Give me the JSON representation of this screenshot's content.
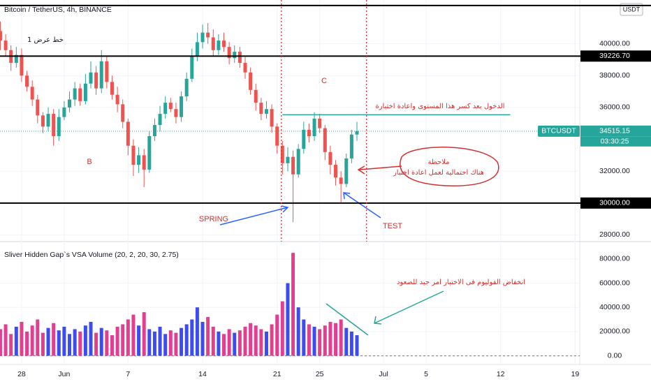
{
  "header": {
    "title": "Bitcoin / TetherUS, 4h, BINANCE",
    "currency": "USDT"
  },
  "chart_data": [
    {
      "type": "candlestick",
      "x": [
        26,
        26.5,
        27,
        27.5,
        28,
        28.5,
        29,
        29.5,
        30,
        30.5,
        31,
        31.5,
        32,
        32.5,
        33,
        33.5,
        34,
        34.5,
        35,
        35.5,
        36,
        36.5,
        37,
        37.5,
        38,
        38.5,
        39,
        39.5,
        40,
        40.5,
        41,
        41.5,
        42,
        42.5,
        43,
        43.5,
        44,
        44.5,
        45,
        45.5,
        46,
        46.5,
        47,
        47.5,
        48,
        48.5,
        49,
        49.5,
        50,
        50.5,
        51,
        51.5,
        52,
        52.5,
        53,
        53.5,
        54,
        54.5,
        55,
        55.5,
        56,
        56.5,
        57,
        57.5,
        58,
        58.5,
        59,
        59.5
      ],
      "open": [
        40800,
        40200,
        39600,
        38800,
        39300,
        38000,
        37300,
        36500,
        35500,
        34800,
        35600,
        34200,
        35400,
        36000,
        36500,
        37200,
        36400,
        37500,
        38200,
        37200,
        38900,
        37600,
        36800,
        36200,
        35100,
        33600,
        32400,
        33000,
        32100,
        34200,
        34900,
        35600,
        36300,
        35900,
        35400,
        36700,
        37800,
        39200,
        40100,
        40700,
        40400,
        39600,
        40200,
        39800,
        39100,
        39500,
        38800,
        38200,
        37100,
        36300,
        35600,
        35900,
        34800,
        33600,
        32500,
        32900,
        31800,
        33400,
        34600,
        34200,
        35300,
        34700,
        33200,
        32400,
        31600,
        31200,
        32800,
        34300
      ],
      "high": [
        41400,
        40600,
        39900,
        39800,
        39700,
        38300,
        37700,
        36800,
        35700,
        36000,
        35900,
        35900,
        36400,
        37000,
        37600,
        37500,
        38100,
        38900,
        38600,
        39600,
        39200,
        38000,
        37300,
        36500,
        35300,
        34000,
        33500,
        33400,
        34500,
        35300,
        36100,
        36700,
        36600,
        36300,
        37000,
        38200,
        39700,
        40700,
        41200,
        41300,
        40900,
        40600,
        40700,
        40100,
        39900,
        39800,
        39200,
        38500,
        37500,
        36600,
        36400,
        36200,
        35000,
        33900,
        33500,
        33300,
        33700,
        35100,
        35000,
        35700,
        35600,
        34900,
        33600,
        32700,
        32000,
        33100,
        34600,
        35100
      ],
      "low": [
        39600,
        39200,
        38300,
        38500,
        37600,
        37000,
        36100,
        35000,
        34400,
        34500,
        33600,
        33900,
        35200,
        35700,
        36100,
        36100,
        36200,
        37200,
        36800,
        36900,
        37200,
        36500,
        35700,
        34700,
        33000,
        31700,
        31900,
        31000,
        31900,
        33900,
        34500,
        35300,
        35700,
        35000,
        35100,
        36400,
        37600,
        38900,
        39700,
        40000,
        39200,
        39300,
        39500,
        38700,
        38800,
        38500,
        37800,
        36800,
        35800,
        35200,
        35300,
        34400,
        33100,
        31800,
        32000,
        28800,
        31600,
        33100,
        33800,
        33900,
        34400,
        32700,
        31800,
        31100,
        30000,
        31000,
        32500,
        33900
      ],
      "close": [
        40200,
        39600,
        38800,
        39300,
        38000,
        37300,
        36500,
        35500,
        34800,
        35600,
        34200,
        35400,
        36000,
        36500,
        37200,
        36400,
        37500,
        38200,
        37200,
        38900,
        37600,
        36800,
        36200,
        35100,
        33600,
        32400,
        33000,
        32100,
        34200,
        34900,
        35600,
        36300,
        35900,
        35400,
        36700,
        37800,
        39200,
        40100,
        40700,
        40400,
        39600,
        40200,
        39800,
        39100,
        39500,
        38800,
        38200,
        37100,
        36300,
        35600,
        35900,
        34800,
        33600,
        32500,
        32900,
        31800,
        33400,
        34600,
        34200,
        35300,
        34700,
        33200,
        32400,
        31600,
        31200,
        32800,
        34300,
        34515.15
      ],
      "up_color": "#26a69a",
      "down_color": "#ef5350",
      "xlim": [
        25.97,
        80.43
      ],
      "ylim": [
        27582,
        42747
      ],
      "xticks": [
        28,
        {
          "value": 32,
          "label": "Jun"
        },
        {
          "value": 38,
          "label": "7"
        },
        {
          "value": 45,
          "label": "14"
        },
        {
          "value": 52,
          "label": "21"
        },
        {
          "value": 56,
          "label": "25"
        },
        {
          "value": 62,
          "label": "Jul"
        },
        {
          "value": 66,
          "label": "5"
        },
        {
          "value": 73,
          "label": "12"
        },
        {
          "value": 80,
          "label": "19"
        }
      ],
      "yticks": [
        {
          "value": 28000,
          "label": "28000.00"
        },
        {
          "value": 32000,
          "label": "32000.00"
        },
        {
          "value": 36000,
          "label": "36000.00"
        },
        {
          "value": 38000,
          "label": "38000.00"
        },
        {
          "value": 40000,
          "label": "40000.00"
        }
      ],
      "hlines": [
        {
          "value": 42400
        },
        {
          "value": 39226.7,
          "label": "39226.70"
        },
        {
          "value": 30000,
          "label": "30000.00"
        }
      ],
      "vlines": [
        52.4,
        60.4
      ],
      "resistance": {
        "value": 35540,
        "x": [
          52.5,
          73.9
        ],
        "color": "#26a69a"
      },
      "price_line": {
        "name": "BTCUSDT",
        "value": 34515.15,
        "countdown": "03:30:25",
        "color": "#26a69a"
      },
      "annotations": [
        "خط عرض 1",
        "B",
        "C",
        "الدخول بعد كسر هذا المستوى واعادة اختبارة",
        "ملاحظة",
        "هناك احتمالية لعمل اعادة اختبار",
        "SPRING",
        "TEST"
      ]
    },
    {
      "type": "bar",
      "title": "Sliver Hidden Gap`s VSA Volume (20, 2, 20, 30, 2.75)",
      "values": [
        22000,
        26000,
        18000,
        24000,
        28000,
        20000,
        25000,
        30000,
        19000,
        23000,
        27000,
        21000,
        24000,
        18000,
        22000,
        20000,
        25000,
        28000,
        19000,
        23000,
        21000,
        17000,
        24000,
        26000,
        30000,
        34000,
        25000,
        36000,
        22000,
        20000,
        24000,
        18000,
        21000,
        19000,
        23000,
        26000,
        30000,
        40000,
        28000,
        32000,
        24000,
        20000,
        18000,
        22000,
        19000,
        21000,
        24000,
        27000,
        25000,
        22000,
        20000,
        26000,
        34000,
        45000,
        60000,
        85000,
        40000,
        30000,
        26000,
        24000,
        22000,
        25000,
        28000,
        27000,
        30000,
        23000,
        20000,
        17000
      ],
      "up_color": "#3d4cf0",
      "down_color": "#e0408f",
      "ylim": [
        -7164,
        94328
      ],
      "yticks": [
        {
          "value": 0,
          "label": "0.00"
        },
        {
          "value": 20000,
          "label": "20000.00"
        },
        {
          "value": 40000,
          "label": "40000.00"
        },
        {
          "value": 60000,
          "label": "60000.00"
        },
        {
          "value": 80000,
          "label": "80000.00"
        }
      ],
      "annotations": [
        "انخفاض الفوليوم فى الاختبار امر جيد للصعود"
      ]
    }
  ]
}
